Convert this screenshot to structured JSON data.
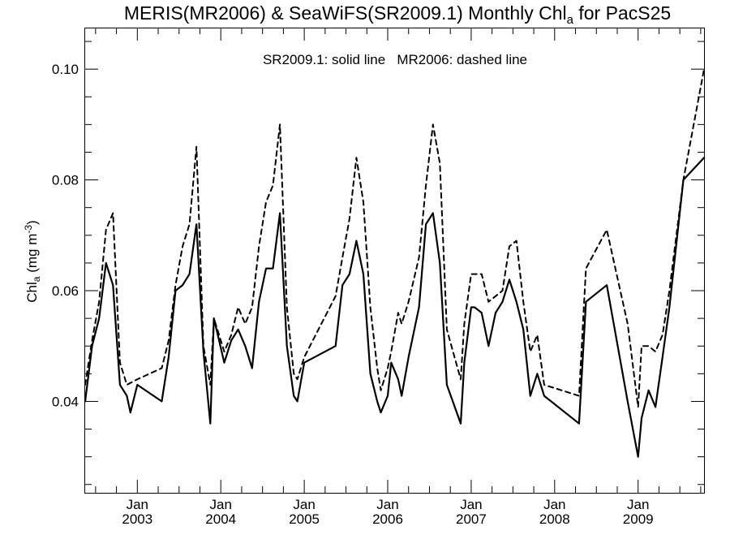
{
  "chart_data": {
    "type": "line",
    "title": {
      "pre": "MERIS(MR2006) & SeaWiFS(SR2009.1) Monthly Chl",
      "sub": "a",
      "post": " for PacS25"
    },
    "ylabel": {
      "pre": "Chl",
      "sub": "a",
      "post": " (mg m",
      "sup": "-3",
      "end": ")"
    },
    "annotation": "SR2009.1: solid line   MR2006: dashed line",
    "ylim": [
      0.0235,
      0.1075
    ],
    "xlim": [
      2002.375,
      2009.79
    ],
    "y_ticks": [
      "0.04",
      "0.06",
      "0.08",
      "0.10"
    ],
    "x_ticks": [
      {
        "month": "Jan",
        "year": "2003"
      },
      {
        "month": "Jan",
        "year": "2004"
      },
      {
        "month": "Jan",
        "year": "2005"
      },
      {
        "month": "Jan",
        "year": "2006"
      },
      {
        "month": "Jan",
        "year": "2007"
      },
      {
        "month": "Jan",
        "year": "2008"
      },
      {
        "month": "Jan",
        "year": "2009"
      }
    ],
    "series": [
      {
        "style": "solid",
        "points": [
          [
            2002.375,
            0.04
          ],
          [
            2002.458,
            0.05
          ],
          [
            2002.542,
            0.055
          ],
          [
            2002.625,
            0.065
          ],
          [
            2002.708,
            0.061
          ],
          [
            2002.792,
            0.043
          ],
          [
            2002.875,
            0.041
          ],
          [
            2002.917,
            0.038
          ],
          [
            2003.0,
            0.043
          ],
          [
            2003.292,
            0.04
          ],
          [
            2003.375,
            0.048
          ],
          [
            2003.458,
            0.06
          ],
          [
            2003.542,
            0.061
          ],
          [
            2003.625,
            0.063
          ],
          [
            2003.708,
            0.072
          ],
          [
            2003.792,
            0.049
          ],
          [
            2003.875,
            0.036
          ],
          [
            2003.917,
            0.055
          ],
          [
            2004.042,
            0.047
          ],
          [
            2004.125,
            0.051
          ],
          [
            2004.208,
            0.053
          ],
          [
            2004.292,
            0.05
          ],
          [
            2004.375,
            0.046
          ],
          [
            2004.458,
            0.058
          ],
          [
            2004.542,
            0.064
          ],
          [
            2004.625,
            0.064
          ],
          [
            2004.708,
            0.074
          ],
          [
            2004.792,
            0.05
          ],
          [
            2004.875,
            0.041
          ],
          [
            2004.917,
            0.04
          ],
          [
            2005.0,
            0.047
          ],
          [
            2005.375,
            0.05
          ],
          [
            2005.458,
            0.061
          ],
          [
            2005.542,
            0.063
          ],
          [
            2005.625,
            0.069
          ],
          [
            2005.708,
            0.063
          ],
          [
            2005.792,
            0.045
          ],
          [
            2005.875,
            0.04
          ],
          [
            2005.917,
            0.038
          ],
          [
            2006.0,
            0.041
          ],
          [
            2006.042,
            0.047
          ],
          [
            2006.125,
            0.044
          ],
          [
            2006.167,
            0.041
          ],
          [
            2006.25,
            0.048
          ],
          [
            2006.375,
            0.057
          ],
          [
            2006.458,
            0.072
          ],
          [
            2006.542,
            0.074
          ],
          [
            2006.625,
            0.065
          ],
          [
            2006.708,
            0.043
          ],
          [
            2006.875,
            0.036
          ],
          [
            2006.917,
            0.047
          ],
          [
            2007.0,
            0.057
          ],
          [
            2007.042,
            0.057
          ],
          [
            2007.125,
            0.056
          ],
          [
            2007.208,
            0.05
          ],
          [
            2007.292,
            0.056
          ],
          [
            2007.375,
            0.058
          ],
          [
            2007.458,
            0.062
          ],
          [
            2007.542,
            0.058
          ],
          [
            2007.625,
            0.053
          ],
          [
            2007.708,
            0.041
          ],
          [
            2007.792,
            0.045
          ],
          [
            2007.875,
            0.041
          ],
          [
            2008.292,
            0.036
          ],
          [
            2008.375,
            0.058
          ],
          [
            2008.625,
            0.061
          ],
          [
            2008.875,
            0.04
          ],
          [
            2009.0,
            0.03
          ],
          [
            2009.042,
            0.037
          ],
          [
            2009.125,
            0.042
          ],
          [
            2009.208,
            0.039
          ],
          [
            2009.292,
            0.048
          ],
          [
            2009.375,
            0.057
          ],
          [
            2009.542,
            0.08
          ],
          [
            2009.79,
            0.084
          ]
        ]
      },
      {
        "style": "dashed",
        "points": [
          [
            2002.375,
            0.043
          ],
          [
            2002.458,
            0.051
          ],
          [
            2002.542,
            0.058
          ],
          [
            2002.625,
            0.071
          ],
          [
            2002.708,
            0.074
          ],
          [
            2002.792,
            0.047
          ],
          [
            2002.875,
            0.043
          ],
          [
            2003.0,
            0.044
          ],
          [
            2003.292,
            0.046
          ],
          [
            2003.375,
            0.051
          ],
          [
            2003.458,
            0.061
          ],
          [
            2003.542,
            0.068
          ],
          [
            2003.625,
            0.072
          ],
          [
            2003.708,
            0.086
          ],
          [
            2003.792,
            0.05
          ],
          [
            2003.875,
            0.043
          ],
          [
            2003.917,
            0.055
          ],
          [
            2004.042,
            0.049
          ],
          [
            2004.125,
            0.052
          ],
          [
            2004.208,
            0.057
          ],
          [
            2004.292,
            0.054
          ],
          [
            2004.375,
            0.057
          ],
          [
            2004.458,
            0.068
          ],
          [
            2004.542,
            0.076
          ],
          [
            2004.625,
            0.079
          ],
          [
            2004.708,
            0.09
          ],
          [
            2004.792,
            0.057
          ],
          [
            2004.875,
            0.045
          ],
          [
            2004.917,
            0.044
          ],
          [
            2005.0,
            0.048
          ],
          [
            2005.375,
            0.059
          ],
          [
            2005.458,
            0.066
          ],
          [
            2005.542,
            0.073
          ],
          [
            2005.625,
            0.084
          ],
          [
            2005.708,
            0.076
          ],
          [
            2005.792,
            0.057
          ],
          [
            2005.875,
            0.046
          ],
          [
            2005.917,
            0.042
          ],
          [
            2006.0,
            0.046
          ],
          [
            2006.042,
            0.049
          ],
          [
            2006.125,
            0.056
          ],
          [
            2006.167,
            0.054
          ],
          [
            2006.25,
            0.058
          ],
          [
            2006.375,
            0.066
          ],
          [
            2006.458,
            0.079
          ],
          [
            2006.542,
            0.09
          ],
          [
            2006.625,
            0.083
          ],
          [
            2006.708,
            0.053
          ],
          [
            2006.875,
            0.044
          ],
          [
            2006.917,
            0.054
          ],
          [
            2007.0,
            0.063
          ],
          [
            2007.042,
            0.063
          ],
          [
            2007.125,
            0.063
          ],
          [
            2007.208,
            0.058
          ],
          [
            2007.292,
            0.059
          ],
          [
            2007.375,
            0.06
          ],
          [
            2007.458,
            0.068
          ],
          [
            2007.542,
            0.069
          ],
          [
            2007.625,
            0.058
          ],
          [
            2007.708,
            0.049
          ],
          [
            2007.792,
            0.052
          ],
          [
            2007.875,
            0.043
          ],
          [
            2008.292,
            0.041
          ],
          [
            2008.375,
            0.064
          ],
          [
            2008.625,
            0.071
          ],
          [
            2008.875,
            0.054
          ],
          [
            2009.0,
            0.039
          ],
          [
            2009.042,
            0.05
          ],
          [
            2009.125,
            0.05
          ],
          [
            2009.208,
            0.049
          ],
          [
            2009.292,
            0.052
          ],
          [
            2009.375,
            0.06
          ],
          [
            2009.542,
            0.08
          ],
          [
            2009.79,
            0.1
          ]
        ]
      }
    ]
  }
}
